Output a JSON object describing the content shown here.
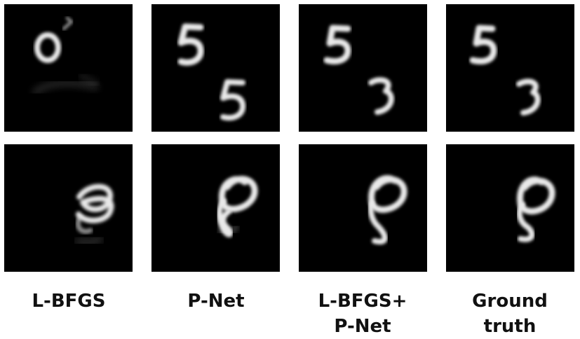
{
  "figure": {
    "columns": [
      {
        "label_lines": [
          "L-BFGS"
        ]
      },
      {
        "label_lines": [
          "P-Net"
        ]
      },
      {
        "label_lines": [
          "L-BFGS+",
          "P-Net"
        ]
      },
      {
        "label_lines": [
          "Ground",
          "truth"
        ]
      }
    ],
    "rows": [
      {
        "digits": [
          "0",
          "5 5",
          "5 3",
          "5 3"
        ]
      },
      {
        "digits": [
          "8",
          "8",
          "8",
          "8"
        ]
      }
    ]
  }
}
